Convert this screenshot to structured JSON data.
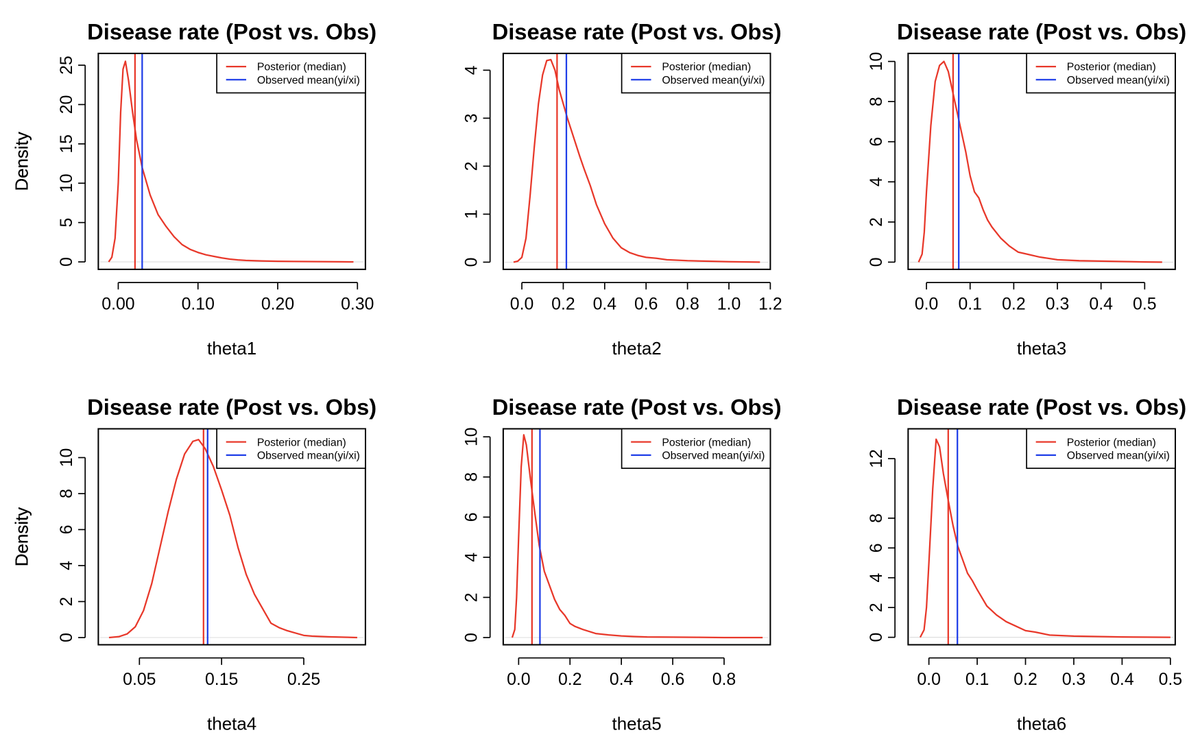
{
  "colors": {
    "posterior": "#e8382a",
    "observed": "#1f3ee8",
    "axis": "#000000"
  },
  "chart_data": [
    {
      "type": "line",
      "title": "Disease rate (Post vs. Obs)",
      "xlabel": "theta1",
      "ylabel": "Density",
      "xlim": [
        -0.025,
        0.31
      ],
      "ylim": [
        -0.95,
        26.5
      ],
      "xticks": [
        0.0,
        0.1,
        0.2,
        0.3
      ],
      "xtick_labels": [
        "0.00",
        "0.10",
        "0.20",
        "0.30"
      ],
      "yticks": [
        0,
        5,
        10,
        15,
        20,
        25
      ],
      "ytick_labels": [
        "0",
        "5",
        "10",
        "15",
        "20",
        "25"
      ],
      "legend": {
        "position": "top-right",
        "entries": [
          "Posterior (median)",
          "Observed mean(yi/xi)"
        ]
      },
      "posterior_median": 0.021,
      "observed_mean": 0.03,
      "series": [
        {
          "name": "Posterior (median)",
          "x": [
            -0.012,
            -0.008,
            -0.004,
            0.0,
            0.003,
            0.006,
            0.009,
            0.013,
            0.018,
            0.023,
            0.03,
            0.04,
            0.05,
            0.06,
            0.07,
            0.08,
            0.09,
            0.1,
            0.11,
            0.12,
            0.13,
            0.14,
            0.15,
            0.16,
            0.18,
            0.2,
            0.22,
            0.25,
            0.28,
            0.295
          ],
          "y": [
            0,
            0.6,
            3,
            10,
            19,
            24.5,
            25.5,
            23,
            19,
            15.5,
            12,
            8.5,
            6,
            4.5,
            3.2,
            2.2,
            1.6,
            1.2,
            0.9,
            0.7,
            0.5,
            0.35,
            0.25,
            0.18,
            0.12,
            0.08,
            0.05,
            0.03,
            0.01,
            0.0
          ]
        }
      ]
    },
    {
      "type": "line",
      "title": "Disease rate (Post vs. Obs)",
      "xlabel": "theta2",
      "ylabel": "Density",
      "xlim": [
        -0.09,
        1.2
      ],
      "ylim": [
        -0.15,
        4.35
      ],
      "xticks": [
        0.0,
        0.2,
        0.4,
        0.6,
        0.8,
        1.0,
        1.2
      ],
      "xtick_labels": [
        "0.0",
        "0.2",
        "0.4",
        "0.6",
        "0.8",
        "1.0",
        "1.2"
      ],
      "yticks": [
        0,
        1,
        2,
        3,
        4
      ],
      "ytick_labels": [
        "0",
        "1",
        "2",
        "3",
        "4"
      ],
      "legend": {
        "position": "top-right",
        "entries": [
          "Posterior (median)",
          "Observed mean(yi/xi)"
        ]
      },
      "posterior_median": 0.17,
      "observed_mean": 0.215,
      "series": [
        {
          "name": "Posterior (median)",
          "x": [
            -0.04,
            -0.02,
            0.0,
            0.02,
            0.04,
            0.06,
            0.08,
            0.1,
            0.12,
            0.14,
            0.16,
            0.18,
            0.2,
            0.22,
            0.25,
            0.28,
            0.3,
            0.33,
            0.36,
            0.4,
            0.44,
            0.48,
            0.52,
            0.56,
            0.6,
            0.65,
            0.7,
            0.8,
            0.9,
            1.0,
            1.15
          ],
          "y": [
            0,
            0.02,
            0.1,
            0.5,
            1.4,
            2.4,
            3.3,
            3.9,
            4.2,
            4.22,
            4.0,
            3.6,
            3.3,
            3.0,
            2.6,
            2.2,
            1.95,
            1.6,
            1.2,
            0.8,
            0.5,
            0.3,
            0.2,
            0.14,
            0.1,
            0.08,
            0.05,
            0.03,
            0.02,
            0.01,
            0.0
          ]
        }
      ]
    },
    {
      "type": "line",
      "title": "Disease rate (Post vs. Obs)",
      "xlabel": "theta3",
      "ylabel": "Density",
      "xlim": [
        -0.042,
        0.57
      ],
      "ylim": [
        -0.36,
        10.4
      ],
      "xticks": [
        0.0,
        0.1,
        0.2,
        0.3,
        0.4,
        0.5
      ],
      "xtick_labels": [
        "0.0",
        "0.1",
        "0.2",
        "0.3",
        "0.4",
        "0.5"
      ],
      "yticks": [
        0,
        2,
        4,
        6,
        8,
        10
      ],
      "ytick_labels": [
        "0",
        "2",
        "4",
        "6",
        "8",
        "10"
      ],
      "legend": {
        "position": "top-right",
        "entries": [
          "Posterior (median)",
          "Observed mean(yi/xi)"
        ]
      },
      "posterior_median": 0.061,
      "observed_mean": 0.074,
      "series": [
        {
          "name": "Posterior (median)",
          "x": [
            -0.018,
            -0.01,
            -0.005,
            0.0,
            0.01,
            0.02,
            0.03,
            0.04,
            0.05,
            0.06,
            0.07,
            0.08,
            0.09,
            0.1,
            0.11,
            0.12,
            0.13,
            0.14,
            0.15,
            0.17,
            0.19,
            0.21,
            0.23,
            0.26,
            0.3,
            0.35,
            0.4,
            0.45,
            0.5,
            0.54
          ],
          "y": [
            0,
            0.4,
            1.5,
            3.5,
            6.8,
            9.0,
            9.8,
            10.0,
            9.5,
            8.5,
            7.5,
            6.5,
            5.5,
            4.3,
            3.5,
            3.2,
            2.6,
            2.1,
            1.75,
            1.2,
            0.8,
            0.5,
            0.4,
            0.25,
            0.12,
            0.07,
            0.05,
            0.03,
            0.01,
            0.0
          ]
        }
      ]
    },
    {
      "type": "line",
      "title": "Disease rate (Post vs. Obs)",
      "xlabel": "theta4",
      "ylabel": "Density",
      "xlim": [
        0.0,
        0.325
      ],
      "ylim": [
        -0.4,
        11.6
      ],
      "xticks": [
        0.05,
        0.15,
        0.25
      ],
      "xtick_labels": [
        "0.05",
        "0.15",
        "0.25"
      ],
      "yticks": [
        0,
        2,
        4,
        6,
        8,
        10
      ],
      "ytick_labels": [
        "0",
        "2",
        "4",
        "6",
        "8",
        "10"
      ],
      "legend": {
        "position": "top-right",
        "entries": [
          "Posterior (median)",
          "Observed mean(yi/xi)"
        ]
      },
      "posterior_median": 0.128,
      "observed_mean": 0.133,
      "series": [
        {
          "name": "Posterior (median)",
          "x": [
            0.013,
            0.025,
            0.035,
            0.045,
            0.055,
            0.065,
            0.075,
            0.085,
            0.095,
            0.105,
            0.115,
            0.122,
            0.13,
            0.14,
            0.15,
            0.16,
            0.17,
            0.18,
            0.19,
            0.2,
            0.21,
            0.22,
            0.23,
            0.24,
            0.25,
            0.26,
            0.28,
            0.3,
            0.315
          ],
          "y": [
            0,
            0.05,
            0.2,
            0.6,
            1.5,
            3.0,
            5.0,
            7.0,
            8.8,
            10.2,
            10.9,
            11.0,
            10.5,
            9.5,
            8.2,
            6.8,
            5.0,
            3.5,
            2.4,
            1.6,
            0.8,
            0.55,
            0.38,
            0.25,
            0.12,
            0.08,
            0.04,
            0.02,
            0.0
          ]
        }
      ]
    },
    {
      "type": "line",
      "title": "Disease rate (Post vs. Obs)",
      "xlabel": "theta5",
      "ylabel": "Density",
      "xlim": [
        -0.06,
        0.98
      ],
      "ylim": [
        -0.36,
        10.4
      ],
      "xticks": [
        0.0,
        0.2,
        0.4,
        0.6,
        0.8
      ],
      "xtick_labels": [
        "0.0",
        "0.2",
        "0.4",
        "0.6",
        "0.8"
      ],
      "yticks": [
        0,
        2,
        4,
        6,
        8,
        10
      ],
      "ytick_labels": [
        "0",
        "2",
        "4",
        "6",
        "8",
        "10"
      ],
      "legend": {
        "position": "top-right",
        "entries": [
          "Posterior (median)",
          "Observed mean(yi/xi)"
        ]
      },
      "posterior_median": 0.052,
      "observed_mean": 0.083,
      "series": [
        {
          "name": "Posterior (median)",
          "x": [
            -0.025,
            -0.015,
            -0.008,
            0.0,
            0.01,
            0.02,
            0.03,
            0.045,
            0.06,
            0.08,
            0.1,
            0.12,
            0.14,
            0.16,
            0.18,
            0.2,
            0.22,
            0.25,
            0.3,
            0.35,
            0.4,
            0.45,
            0.5,
            0.6,
            0.7,
            0.8,
            0.95
          ],
          "y": [
            0,
            0.4,
            2,
            5,
            8.5,
            10.1,
            9.6,
            8.0,
            6.5,
            4.6,
            3.3,
            2.6,
            1.9,
            1.4,
            1.1,
            0.7,
            0.55,
            0.4,
            0.2,
            0.13,
            0.08,
            0.05,
            0.03,
            0.02,
            0.01,
            0.0,
            0.0
          ]
        }
      ]
    },
    {
      "type": "line",
      "title": "Disease rate (Post vs. Obs)",
      "xlabel": "theta6",
      "ylabel": "Density",
      "xlim": [
        -0.043,
        0.51
      ],
      "ylim": [
        -0.5,
        14.0
      ],
      "xticks": [
        0.0,
        0.1,
        0.2,
        0.3,
        0.4,
        0.5
      ],
      "xtick_labels": [
        "0.0",
        "0.1",
        "0.2",
        "0.3",
        "0.4",
        "0.5"
      ],
      "yticks": [
        0,
        2,
        4,
        6,
        8,
        12
      ],
      "ytick_labels": [
        "0",
        "2",
        "4",
        "6",
        "8",
        "12"
      ],
      "legend": {
        "position": "top-right",
        "entries": [
          "Posterior (median)",
          "Observed mean(yi/xi)"
        ]
      },
      "posterior_median": 0.04,
      "observed_mean": 0.059,
      "series": [
        {
          "name": "Posterior (median)",
          "x": [
            -0.018,
            -0.01,
            -0.005,
            0.0,
            0.008,
            0.015,
            0.022,
            0.03,
            0.04,
            0.05,
            0.06,
            0.07,
            0.08,
            0.09,
            0.1,
            0.12,
            0.14,
            0.16,
            0.18,
            0.2,
            0.22,
            0.25,
            0.3,
            0.35,
            0.4,
            0.45,
            0.5
          ],
          "y": [
            0,
            0.5,
            2,
            5,
            10,
            13.3,
            12.8,
            11,
            9.2,
            7.5,
            6.1,
            5.2,
            4.3,
            3.8,
            3.2,
            2.1,
            1.5,
            1.05,
            0.75,
            0.45,
            0.35,
            0.15,
            0.08,
            0.05,
            0.02,
            0.01,
            0.0
          ]
        }
      ]
    }
  ]
}
